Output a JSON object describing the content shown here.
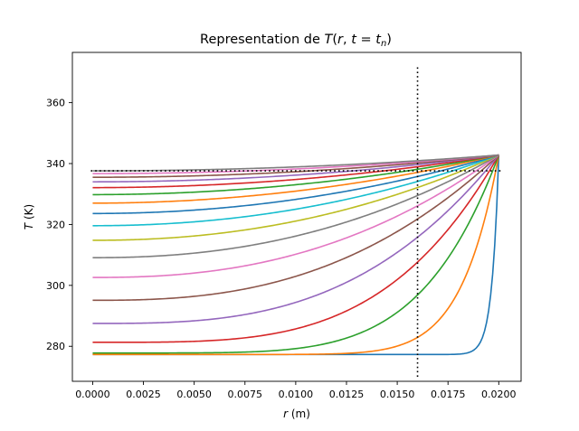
{
  "chart_data": {
    "type": "line",
    "title_prefix": "Representation de ",
    "title_math": [
      "T",
      "(",
      "r",
      ", ",
      "t",
      " = ",
      "t",
      "n",
      ")"
    ],
    "xlabel": {
      "var": "r",
      "unit": " (m)"
    },
    "ylabel": {
      "var": "T",
      "unit": " (K)"
    },
    "xlim": [
      -0.001,
      0.0211
    ],
    "ylim": [
      268.5,
      376.5
    ],
    "x_ticks": [
      0.0,
      0.0025,
      0.005,
      0.0075,
      0.01,
      0.0125,
      0.015,
      0.0175,
      0.02
    ],
    "x_tick_labels": [
      "0.0000",
      "0.0025",
      "0.0050",
      "0.0075",
      "0.0100",
      "0.0125",
      "0.0150",
      "0.0175",
      "0.0200"
    ],
    "y_ticks": [
      280,
      300,
      320,
      340,
      360
    ],
    "y_tick_labels": [
      "280",
      "300",
      "320",
      "340",
      "360"
    ],
    "grid": false,
    "colors": [
      "#1f77b4",
      "#ff7f0e",
      "#2ca02c",
      "#d62728",
      "#9467bd",
      "#8c564b",
      "#e377c2",
      "#7f7f7f",
      "#bcbd22",
      "#17becf"
    ],
    "reference_lines": {
      "horizontal_y": 337.6,
      "vertical_x": 0.016,
      "vertical_y_range": [
        270.0,
        372.5
      ],
      "style": "dotted",
      "color": "#000000"
    },
    "profile_shape": {
      "r_max": 0.02,
      "surface_T": 342.8,
      "exponent": 2
    },
    "series": [
      {
        "center_T": 277.3,
        "exponent": 60
      },
      {
        "center_T": 277.3,
        "exponent": 11
      },
      {
        "center_T": 277.8,
        "exponent": 5.5
      },
      {
        "center_T": 281.3,
        "exponent": 3.8
      },
      {
        "center_T": 287.5,
        "exponent": 3.0
      },
      {
        "center_T": 295.1,
        "exponent": 2.6
      },
      {
        "center_T": 302.6,
        "exponent": 2.4
      },
      {
        "center_T": 309.1,
        "exponent": 2.25
      },
      {
        "center_T": 314.8,
        "exponent": 2.15
      },
      {
        "center_T": 319.6,
        "exponent": 2.1
      },
      {
        "center_T": 323.6,
        "exponent": 2.05
      },
      {
        "center_T": 327.0,
        "exponent": 2.0
      },
      {
        "center_T": 329.8,
        "exponent": 2.0
      },
      {
        "center_T": 332.1,
        "exponent": 2.0
      },
      {
        "center_T": 334.0,
        "exponent": 2.0
      },
      {
        "center_T": 335.5,
        "exponent": 2.0
      },
      {
        "center_T": 336.7,
        "exponent": 2.0
      },
      {
        "center_T": 337.6,
        "exponent": 2.0
      }
    ]
  }
}
